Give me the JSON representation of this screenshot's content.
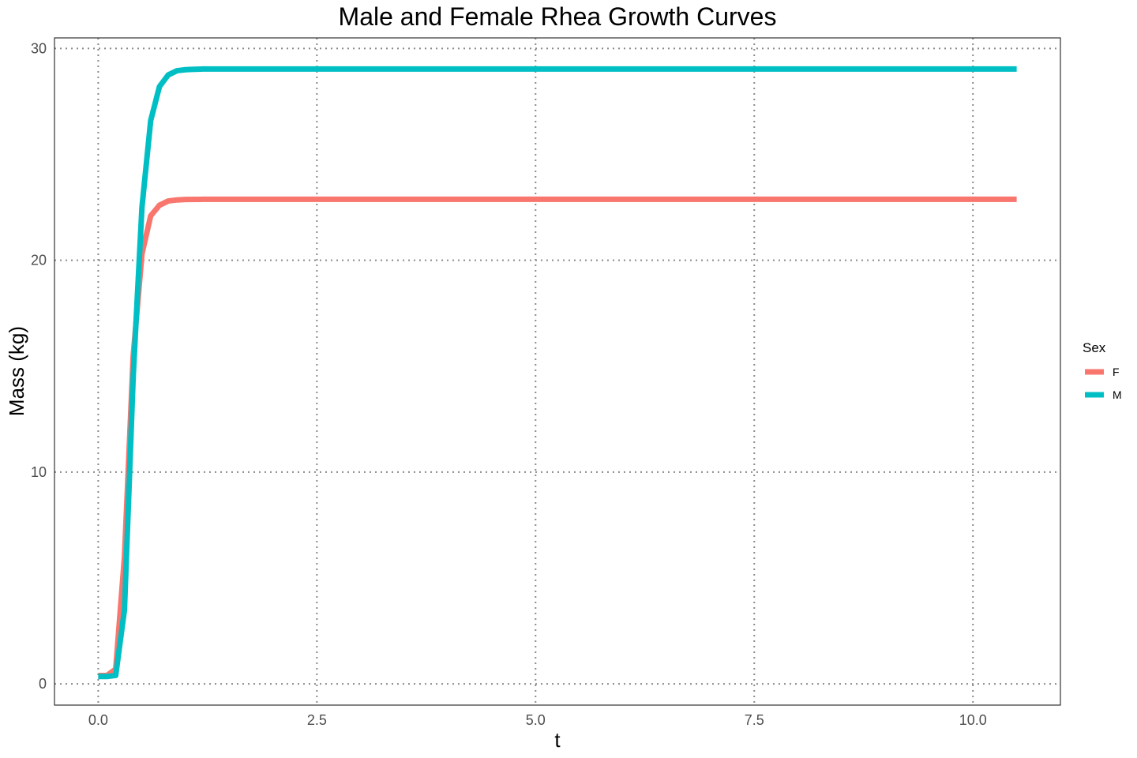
{
  "chart_data": {
    "type": "line",
    "title": "Male and Female Rhea Growth Curves",
    "xlabel": "t",
    "ylabel": "Mass (kg)",
    "xlim": [
      -0.5,
      11.0
    ],
    "ylim": [
      -1.0,
      30.5
    ],
    "x_ticks": [
      0.0,
      2.5,
      5.0,
      7.5,
      10.0
    ],
    "x_tick_labels": [
      "0.0",
      "2.5",
      "5.0",
      "7.5",
      "10.0"
    ],
    "y_ticks": [
      0,
      10,
      20,
      30
    ],
    "y_tick_labels": [
      "0",
      "10",
      "20",
      "30"
    ],
    "grid": true,
    "legend": {
      "title": "Sex",
      "placement": "right"
    },
    "series": [
      {
        "name": "F",
        "color": "#F8766D",
        "x": [
          0.0,
          0.1,
          0.2,
          0.3,
          0.4,
          0.5,
          0.6,
          0.7,
          0.8,
          0.9,
          1.0,
          1.2,
          1.5,
          2.0,
          3.0,
          5.0,
          7.5,
          10.0,
          10.5
        ],
        "y": [
          0.4,
          0.4,
          0.7,
          6.0,
          15.5,
          20.3,
          22.1,
          22.6,
          22.8,
          22.85,
          22.87,
          22.88,
          22.88,
          22.88,
          22.88,
          22.88,
          22.88,
          22.88,
          22.88
        ]
      },
      {
        "name": "M",
        "color": "#00BFC4",
        "x": [
          0.0,
          0.1,
          0.2,
          0.3,
          0.4,
          0.5,
          0.6,
          0.7,
          0.8,
          0.9,
          1.0,
          1.1,
          1.2,
          1.5,
          2.0,
          3.0,
          5.0,
          7.5,
          10.0,
          10.5
        ],
        "y": [
          0.35,
          0.35,
          0.4,
          3.5,
          14.5,
          22.5,
          26.6,
          28.2,
          28.75,
          28.95,
          29.0,
          29.02,
          29.03,
          29.03,
          29.03,
          29.03,
          29.03,
          29.03,
          29.03,
          29.03
        ]
      }
    ]
  }
}
